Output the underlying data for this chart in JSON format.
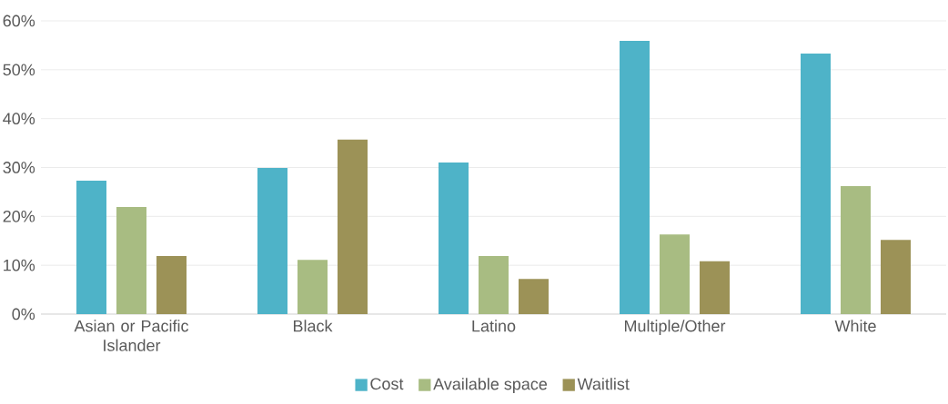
{
  "chart_data": {
    "type": "bar",
    "categories": [
      "Asian or Pacific Islander",
      "Black",
      "Latino",
      "Multiple/Other",
      "White"
    ],
    "series": [
      {
        "name": "Cost",
        "color": "#4eb3c8",
        "values": [
          27.3,
          29.9,
          31.0,
          55.9,
          53.3
        ]
      },
      {
        "name": "Available space",
        "color": "#a8bc82",
        "values": [
          21.9,
          11.1,
          11.9,
          16.3,
          26.2
        ]
      },
      {
        "name": "Waitlist",
        "color": "#9c9257",
        "values": [
          11.9,
          35.7,
          7.2,
          10.8,
          15.2
        ]
      }
    ],
    "ylim": [
      0,
      60
    ],
    "yticks": [
      {
        "value": 0,
        "label": "0%"
      },
      {
        "value": 10,
        "label": "10%"
      },
      {
        "value": 20,
        "label": "20%"
      },
      {
        "value": 30,
        "label": "30%"
      },
      {
        "value": 40,
        "label": "40%"
      },
      {
        "value": 50,
        "label": "50%"
      },
      {
        "value": 60,
        "label": "60%"
      }
    ],
    "grid": "y",
    "legend": "bottom"
  }
}
